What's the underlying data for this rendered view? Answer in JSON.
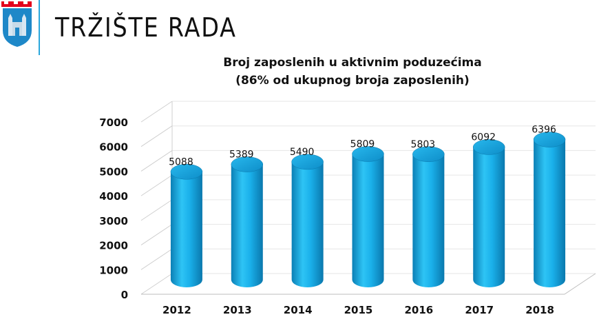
{
  "header": {
    "title": "TRŽIŠTE RADA",
    "logo_icon": "coat-of-arms-icon",
    "accent_color": "#2aa7dc"
  },
  "chart_data": {
    "type": "bar",
    "title": "Broj zaposlenih u aktivnim poduzećima",
    "subtitle": "(86% od ukupnog broja zaposlenih)",
    "categories": [
      "2012",
      "2013",
      "2014",
      "2015",
      "2016",
      "2017",
      "2018"
    ],
    "values": [
      5088,
      5389,
      5490,
      5809,
      5803,
      6092,
      6396
    ],
    "data_labels": [
      "5088",
      "5389",
      "5490",
      "5809",
      "5803",
      "6092",
      "6396"
    ],
    "yticks": [
      "0",
      "1000",
      "2000",
      "3000",
      "4000",
      "5000",
      "6000",
      "7000"
    ],
    "ylim": [
      0,
      7000
    ],
    "xlabel": "",
    "ylabel": "",
    "bar_style": "3d-cylinder",
    "grid": true,
    "legend": "none",
    "bar_color": "#1ab0ea"
  }
}
